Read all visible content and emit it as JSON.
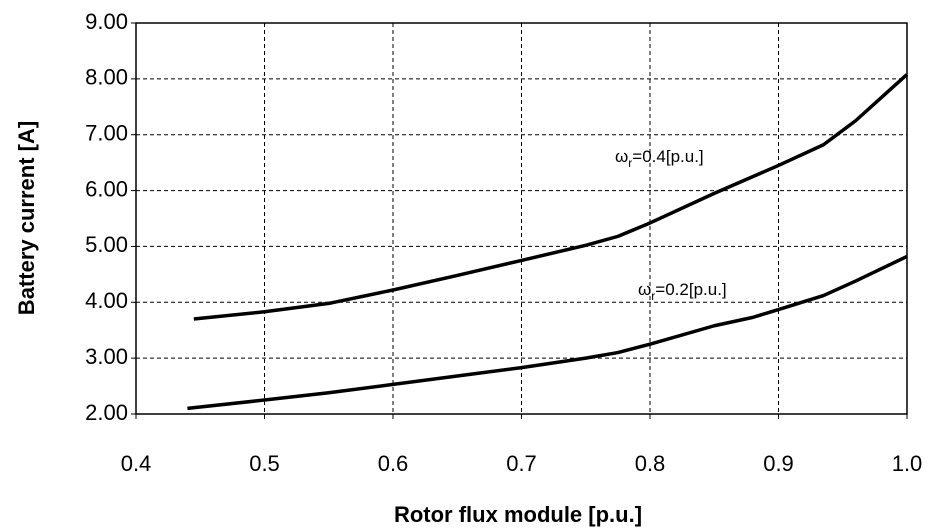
{
  "chart_data": {
    "type": "line",
    "xlabel": "Rotor flux module [p.u.]",
    "ylabel": "Battery current [A]",
    "xlim": [
      0.4,
      1.0
    ],
    "ylim": [
      2,
      9
    ],
    "xticks": [
      0.4,
      0.5,
      0.6,
      0.7,
      0.8,
      0.9,
      {
        "value": 1.0,
        "label": "1.0"
      }
    ],
    "yticks": [
      {
        "value": 2,
        "label": "2.00"
      },
      {
        "value": 3,
        "label": "3.00"
      },
      {
        "value": 4,
        "label": "4.00"
      },
      {
        "value": 5,
        "label": "5.00"
      },
      {
        "value": 6,
        "label": "6.00"
      },
      {
        "value": 7,
        "label": "7.00"
      },
      {
        "value": 8,
        "label": "8.00"
      },
      {
        "value": 9,
        "label": "9.00"
      }
    ],
    "grid": true,
    "series": [
      {
        "label": {
          "symbol": "ω",
          "subscript": "r",
          "text": "=0.4[p.u.]"
        },
        "color": "#000000",
        "x": [
          0.445,
          0.5,
          0.55,
          0.6,
          0.65,
          0.7,
          0.75,
          0.775,
          0.8,
          0.85,
          0.9,
          0.935,
          0.96,
          1.0
        ],
        "values": [
          3.7,
          3.83,
          3.98,
          4.22,
          4.48,
          4.75,
          5.02,
          5.18,
          5.42,
          5.95,
          6.45,
          6.82,
          7.25,
          8.08
        ]
      },
      {
        "label": {
          "symbol": "ω",
          "subscript": "r",
          "text": "=0.2[p.u.]"
        },
        "color": "#000000",
        "x": [
          0.44,
          0.5,
          0.55,
          0.6,
          0.65,
          0.7,
          0.75,
          0.775,
          0.8,
          0.85,
          0.88,
          0.9,
          0.935,
          0.96,
          1.0
        ],
        "values": [
          2.1,
          2.25,
          2.38,
          2.53,
          2.68,
          2.83,
          3.0,
          3.1,
          3.25,
          3.58,
          3.73,
          3.87,
          4.12,
          4.38,
          4.82
        ]
      }
    ]
  }
}
